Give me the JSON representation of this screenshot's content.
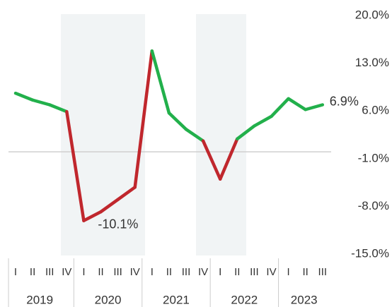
{
  "chart_data": {
    "type": "line",
    "categories": [
      "I",
      "II",
      "III",
      "IV",
      "I",
      "II",
      "III",
      "IV",
      "I",
      "II",
      "III",
      "IV",
      "I",
      "II",
      "III",
      "IV",
      "I",
      "II",
      "III"
    ],
    "groups": [
      {
        "label": "2019",
        "size": 4
      },
      {
        "label": "2020",
        "size": 4
      },
      {
        "label": "2021",
        "size": 4
      },
      {
        "label": "2022",
        "size": 4
      },
      {
        "label": "2023",
        "size": 3
      }
    ],
    "series": [
      {
        "values": [
          8.6,
          7.6,
          6.9,
          5.9,
          -10.1,
          -8.8,
          -7.0,
          -5.2,
          14.8,
          5.7,
          3.3,
          1.6,
          -4.0,
          1.9,
          3.8,
          5.2,
          7.8,
          6.2,
          6.9
        ],
        "colors": [
          "#22b04b",
          "#22b04b",
          "#22b04b",
          "#22b04b",
          "#c0272d",
          "#c0272d",
          "#c0272d",
          "#c0272d",
          "#c0272d",
          "#22b04b",
          "#22b04b",
          "#22b04b",
          "#c0272d",
          "#c0272d",
          "#22b04b",
          "#22b04b",
          "#22b04b",
          "#22b04b",
          "#22b04b"
        ],
        "value_labels": [
          null,
          null,
          null,
          null,
          "-10.1%",
          null,
          null,
          null,
          null,
          null,
          null,
          null,
          null,
          null,
          null,
          null,
          null,
          null,
          "6.9%"
        ]
      }
    ],
    "ylim": [
      -15,
      20
    ],
    "yticks": [
      {
        "value": 20,
        "label": "20.0%"
      },
      {
        "value": 13,
        "label": "13.0%"
      },
      {
        "value": 6,
        "label": "6.0%"
      },
      {
        "value": -1,
        "label": "-1.0%"
      },
      {
        "value": -8,
        "label": "-8.0%"
      },
      {
        "value": -15,
        "label": "-15.0%"
      }
    ],
    "y_axis_side": "right"
  }
}
